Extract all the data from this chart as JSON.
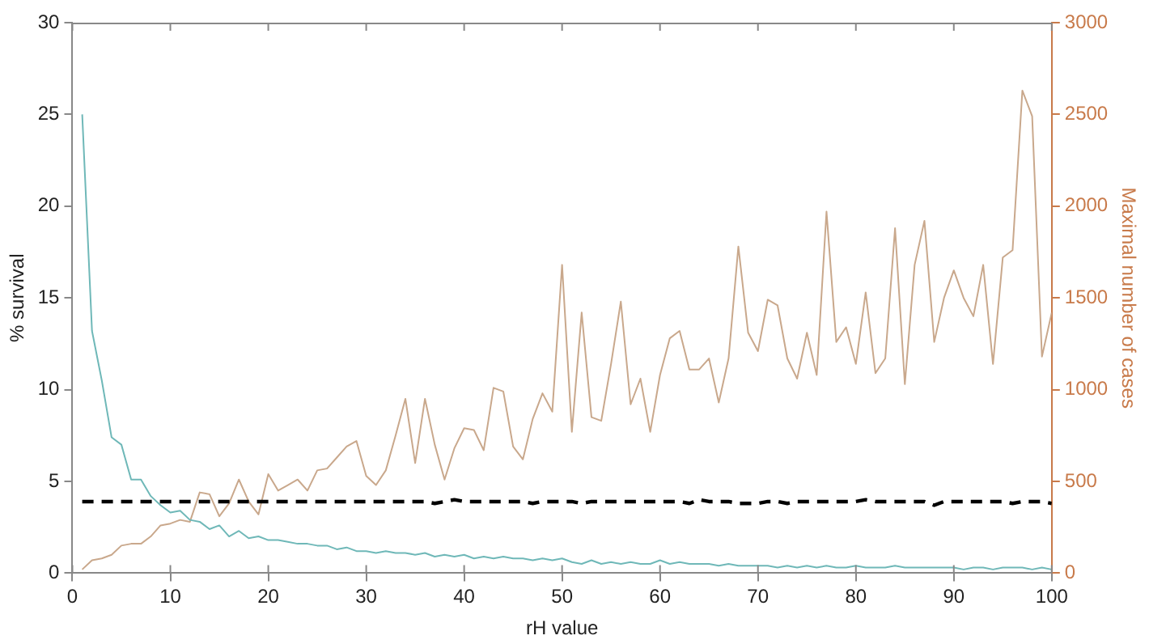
{
  "chart_data": {
    "type": "line",
    "xlabel": "rH value",
    "ylabel": "% survival",
    "y2label": "Maximal number of cases",
    "x": [
      1,
      2,
      3,
      4,
      5,
      6,
      7,
      8,
      9,
      10,
      11,
      12,
      13,
      14,
      15,
      16,
      17,
      18,
      19,
      20,
      21,
      22,
      23,
      24,
      25,
      26,
      27,
      28,
      29,
      30,
      31,
      32,
      33,
      34,
      35,
      36,
      37,
      38,
      39,
      40,
      41,
      42,
      43,
      44,
      45,
      46,
      47,
      48,
      49,
      50,
      51,
      52,
      53,
      54,
      55,
      56,
      57,
      58,
      59,
      60,
      61,
      62,
      63,
      64,
      65,
      66,
      67,
      68,
      69,
      70,
      71,
      72,
      73,
      74,
      75,
      76,
      77,
      78,
      79,
      80,
      81,
      82,
      83,
      84,
      85,
      86,
      87,
      88,
      89,
      90,
      91,
      92,
      93,
      94,
      95,
      96,
      97,
      98,
      99,
      100
    ],
    "xlim": [
      0,
      100
    ],
    "xticks": [
      0,
      10,
      20,
      30,
      40,
      50,
      60,
      70,
      80,
      90,
      100
    ],
    "ylim": [
      0,
      30
    ],
    "yticks": [
      0,
      5,
      10,
      15,
      20,
      25,
      30
    ],
    "y2lim": [
      0,
      3000
    ],
    "y2ticks": [
      0,
      500,
      1000,
      1500,
      2000,
      2500,
      3000
    ],
    "grid": false,
    "legend": false,
    "marker": "none",
    "series": [
      {
        "color": "#6fb8b8",
        "values": [
          25,
          13.2,
          10.5,
          7.4,
          7,
          5.1,
          5.1,
          4.2,
          3.7,
          3.3,
          3.4,
          2.9,
          2.8,
          2.4,
          2.6,
          2.0,
          2.3,
          1.9,
          2.0,
          1.8,
          1.8,
          1.7,
          1.6,
          1.6,
          1.5,
          1.5,
          1.3,
          1.4,
          1.2,
          1.2,
          1.1,
          1.2,
          1.1,
          1.1,
          1.0,
          1.1,
          0.9,
          1.0,
          0.9,
          1.0,
          0.8,
          0.9,
          0.8,
          0.9,
          0.8,
          0.8,
          0.7,
          0.8,
          0.7,
          0.8,
          0.6,
          0.5,
          0.7,
          0.5,
          0.6,
          0.5,
          0.6,
          0.5,
          0.5,
          0.7,
          0.5,
          0.6,
          0.5,
          0.5,
          0.5,
          0.4,
          0.5,
          0.4,
          0.4,
          0.4,
          0.4,
          0.3,
          0.4,
          0.3,
          0.4,
          0.3,
          0.4,
          0.3,
          0.3,
          0.4,
          0.3,
          0.3,
          0.3,
          0.4,
          0.3,
          0.3,
          0.3,
          0.3,
          0.3,
          0.3,
          0.2,
          0.3,
          0.3,
          0.2,
          0.3,
          0.3,
          0.3,
          0.2,
          0.3,
          0.2
        ]
      },
      {
        "color": "#c9a88c",
        "axis": "y2",
        "values": [
          20,
          70,
          80,
          100,
          150,
          160,
          160,
          200,
          260,
          270,
          290,
          280,
          440,
          430,
          310,
          380,
          510,
          390,
          320,
          540,
          450,
          480,
          510,
          450,
          560,
          570,
          630,
          690,
          720,
          530,
          480,
          560,
          750,
          950,
          600,
          950,
          700,
          510,
          680,
          790,
          780,
          670,
          1010,
          990,
          690,
          620,
          840,
          980,
          880,
          1680,
          770,
          1420,
          850,
          830,
          1140,
          1480,
          920,
          1060,
          770,
          1080,
          1280,
          1320,
          1110,
          1110,
          1170,
          930,
          1170,
          1780,
          1310,
          1210,
          1490,
          1460,
          1170,
          1060,
          1310,
          1080,
          1970,
          1260,
          1340,
          1140,
          1530,
          1090,
          1170,
          1880,
          1030,
          1680,
          1920,
          1260,
          1500,
          1650,
          1500,
          1400,
          1680,
          1140,
          1720,
          1760,
          2630,
          2490,
          1180,
          1420
        ]
      },
      {
        "color": "#000000",
        "line_style": "dashed",
        "values": [
          3.9,
          3.9,
          3.9,
          3.9,
          3.9,
          3.9,
          3.9,
          3.9,
          3.9,
          3.9,
          3.9,
          3.9,
          3.9,
          3.9,
          3.9,
          3.9,
          3.9,
          3.9,
          3.9,
          3.9,
          3.9,
          3.9,
          3.9,
          3.9,
          3.9,
          3.9,
          3.9,
          3.9,
          3.9,
          3.9,
          3.9,
          3.9,
          3.9,
          3.9,
          3.9,
          3.9,
          3.8,
          3.9,
          4.0,
          3.9,
          3.9,
          3.9,
          3.9,
          3.9,
          3.9,
          3.9,
          3.8,
          3.9,
          3.9,
          3.9,
          3.9,
          3.8,
          3.9,
          3.9,
          3.9,
          3.9,
          3.9,
          3.9,
          3.9,
          3.9,
          3.9,
          3.9,
          3.8,
          4.0,
          3.9,
          3.9,
          3.9,
          3.8,
          3.8,
          3.8,
          3.9,
          3.9,
          3.8,
          3.9,
          3.9,
          3.9,
          3.9,
          3.9,
          3.9,
          3.9,
          4.0,
          3.9,
          3.9,
          3.9,
          3.9,
          3.9,
          3.9,
          3.7,
          3.9,
          3.9,
          3.9,
          3.9,
          3.9,
          3.9,
          3.9,
          3.8,
          3.9,
          3.9,
          3.9,
          3.8
        ]
      }
    ]
  }
}
